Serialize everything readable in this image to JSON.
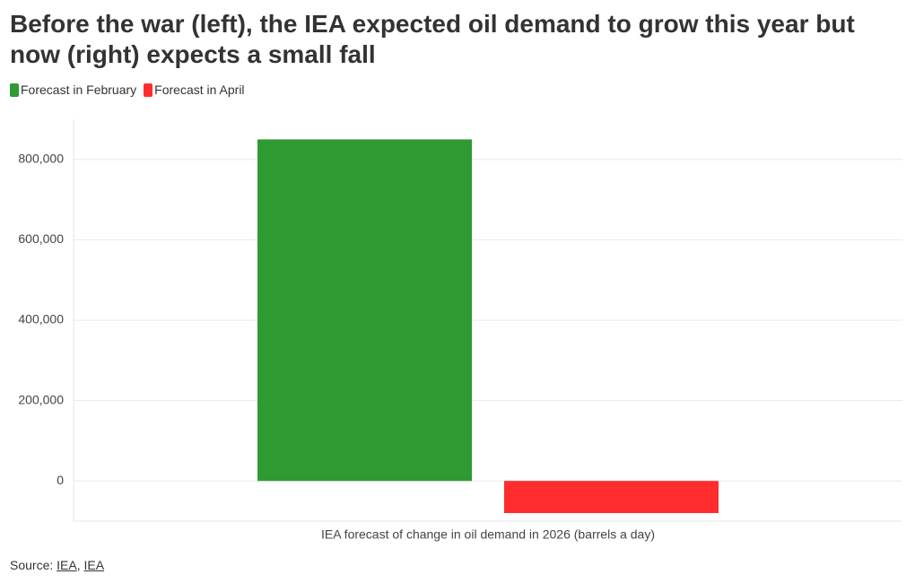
{
  "chart_data": {
    "type": "bar",
    "title": "Before the war (left), the IEA expected oil demand to grow this year but now (right) expects a small fall",
    "categories": [
      "IEA forecast of change in oil demand in 2026 (barrels a day)"
    ],
    "series": [
      {
        "name": "Forecast in February",
        "color": "#2f9a32",
        "values": [
          850000
        ]
      },
      {
        "name": "Forecast in April",
        "color": "#ff2d2d",
        "values": [
          -80000
        ]
      }
    ],
    "ylim": [
      -100000,
      900000
    ],
    "yticks": [
      {
        "value": 0,
        "label": "0"
      },
      {
        "value": 200000,
        "label": "200,000"
      },
      {
        "value": 400000,
        "label": "400,000"
      },
      {
        "value": 600000,
        "label": "600,000"
      },
      {
        "value": 800000,
        "label": "800,000"
      }
    ],
    "grid": true,
    "source_label": "Source:",
    "sources": [
      "IEA",
      "IEA"
    ]
  }
}
